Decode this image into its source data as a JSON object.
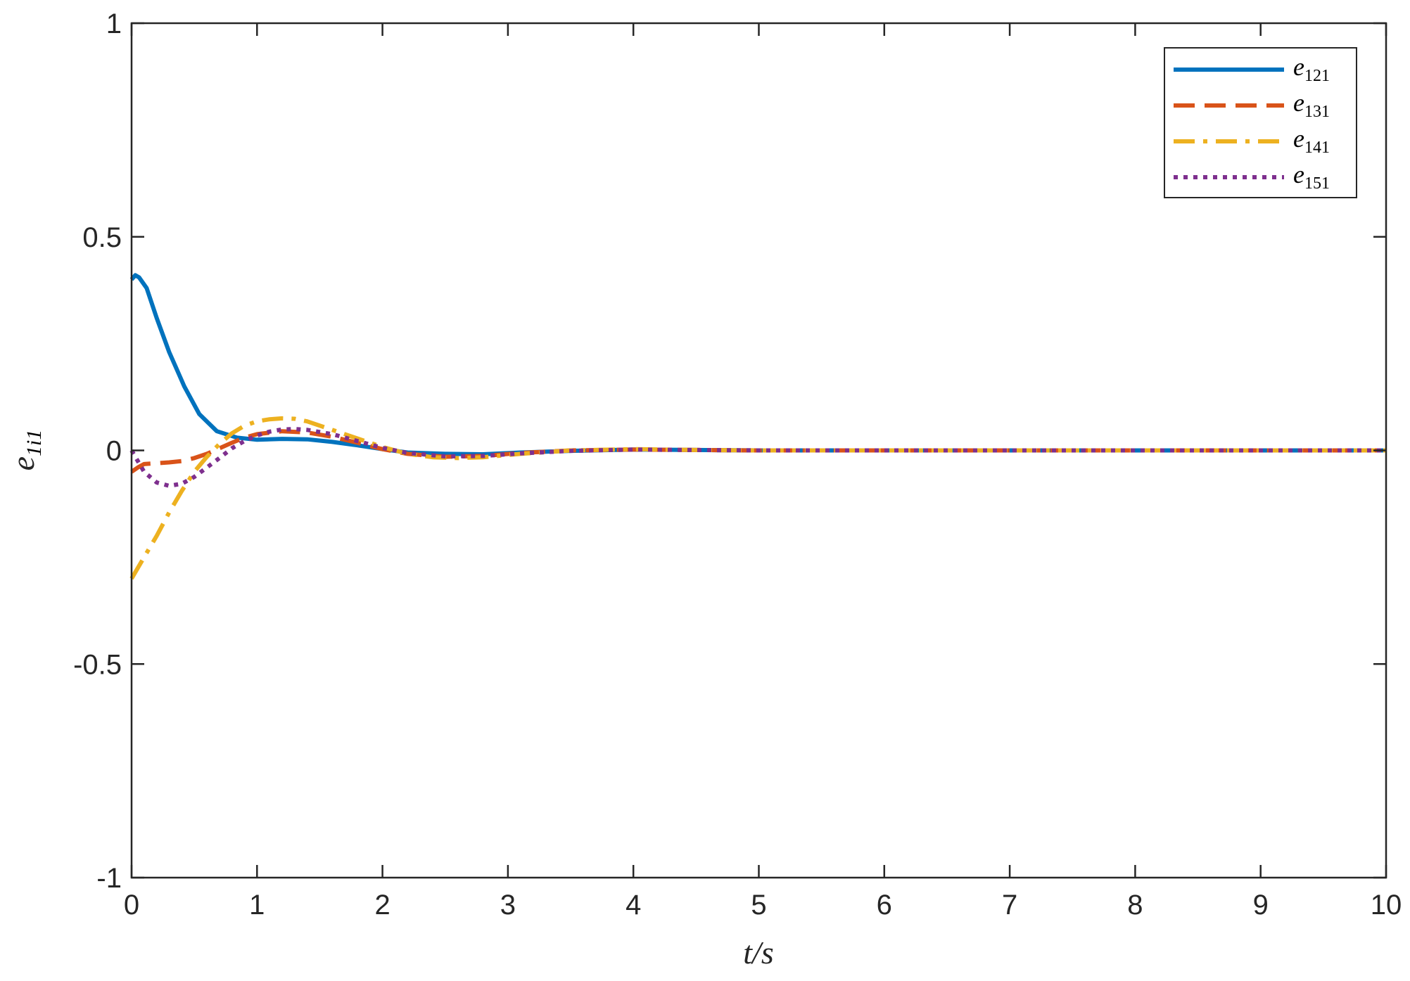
{
  "chart_data": {
    "type": "line",
    "xlabel": "t/s",
    "ylabel_base": "e",
    "ylabel_sub": "1i1",
    "xlim": [
      0,
      10
    ],
    "ylim": [
      -1,
      1
    ],
    "xticks": [
      0,
      1,
      2,
      3,
      4,
      5,
      6,
      7,
      8,
      9,
      10
    ],
    "yticks": [
      -1,
      -0.5,
      0,
      0.5,
      1
    ],
    "xtick_labels": [
      "0",
      "1",
      "2",
      "3",
      "4",
      "5",
      "6",
      "7",
      "8",
      "9",
      "10"
    ],
    "ytick_labels": [
      "-1",
      "-0.5",
      "0",
      "0.5",
      "1"
    ],
    "grid": false,
    "legend_position": "top-right",
    "series": [
      {
        "name": "e121",
        "name_base": "e",
        "name_sub": "121",
        "color": "#0072BD",
        "dash": "solid",
        "x": [
          0,
          0.03,
          0.06,
          0.12,
          0.2,
          0.3,
          0.42,
          0.54,
          0.68,
          0.84,
          1.0,
          1.2,
          1.4,
          1.6,
          1.8,
          2.0,
          2.2,
          2.5,
          2.8,
          3.1,
          3.5,
          4.0,
          4.5,
          5.0,
          6.0,
          7.0,
          8.0,
          9.0,
          10.0
        ],
        "y": [
          0.4,
          0.41,
          0.405,
          0.38,
          0.31,
          0.23,
          0.15,
          0.085,
          0.045,
          0.03,
          0.025,
          0.027,
          0.026,
          0.02,
          0.012,
          0.003,
          -0.005,
          -0.008,
          -0.009,
          -0.005,
          -0.001,
          0.002,
          0.001,
          0.0,
          0.0,
          0.0,
          0.0,
          0.0,
          0.0
        ]
      },
      {
        "name": "e131",
        "name_base": "e",
        "name_sub": "131",
        "color": "#D95319",
        "dash": "dashed",
        "x": [
          0,
          0.05,
          0.1,
          0.2,
          0.3,
          0.4,
          0.5,
          0.6,
          0.7,
          0.8,
          0.9,
          1.0,
          1.2,
          1.4,
          1.6,
          1.8,
          2.0,
          2.2,
          2.5,
          2.8,
          3.1,
          3.5,
          4.0,
          4.5,
          5.0,
          6.0,
          7.0,
          8.0,
          9.0,
          10.0
        ],
        "y": [
          -0.05,
          -0.04,
          -0.032,
          -0.03,
          -0.028,
          -0.025,
          -0.018,
          -0.008,
          0.005,
          0.018,
          0.03,
          0.038,
          0.045,
          0.042,
          0.032,
          0.018,
          0.003,
          -0.008,
          -0.015,
          -0.013,
          -0.006,
          0.0,
          0.002,
          0.001,
          0.0,
          0.0,
          0.0,
          0.0,
          0.0,
          0.0
        ]
      },
      {
        "name": "e141",
        "name_base": "e",
        "name_sub": "141",
        "color": "#EDB120",
        "dash": "dashdot",
        "x": [
          0,
          0.1,
          0.2,
          0.3,
          0.4,
          0.5,
          0.6,
          0.7,
          0.8,
          0.9,
          1.0,
          1.1,
          1.2,
          1.3,
          1.4,
          1.6,
          1.8,
          2.0,
          2.2,
          2.4,
          2.6,
          2.8,
          3.1,
          3.5,
          4.0,
          4.5,
          5.0,
          6.0,
          7.0,
          8.0,
          9.0,
          10.0
        ],
        "y": [
          -0.3,
          -0.25,
          -0.2,
          -0.145,
          -0.095,
          -0.05,
          -0.015,
          0.015,
          0.04,
          0.058,
          0.068,
          0.073,
          0.075,
          0.074,
          0.068,
          0.048,
          0.028,
          0.008,
          -0.008,
          -0.016,
          -0.018,
          -0.016,
          -0.008,
          0.0,
          0.003,
          0.001,
          0.0,
          0.0,
          0.0,
          0.0,
          0.0,
          0.0
        ]
      },
      {
        "name": "e151",
        "name_base": "e",
        "name_sub": "151",
        "color": "#7E2F8E",
        "dash": "dotted",
        "x": [
          0,
          0.05,
          0.1,
          0.2,
          0.3,
          0.4,
          0.5,
          0.6,
          0.7,
          0.8,
          0.9,
          1.0,
          1.1,
          1.2,
          1.3,
          1.4,
          1.6,
          1.8,
          2.0,
          2.2,
          2.5,
          2.8,
          3.1,
          3.5,
          4.0,
          4.5,
          5.0,
          6.0,
          7.0,
          8.0,
          9.0,
          10.0
        ],
        "y": [
          0.0,
          -0.025,
          -0.05,
          -0.075,
          -0.083,
          -0.078,
          -0.062,
          -0.04,
          -0.018,
          0.005,
          0.022,
          0.035,
          0.044,
          0.049,
          0.05,
          0.048,
          0.038,
          0.022,
          0.006,
          -0.006,
          -0.014,
          -0.013,
          -0.007,
          -0.001,
          0.002,
          0.001,
          0.0,
          0.0,
          0.0,
          0.0,
          0.0,
          0.0
        ]
      }
    ]
  }
}
